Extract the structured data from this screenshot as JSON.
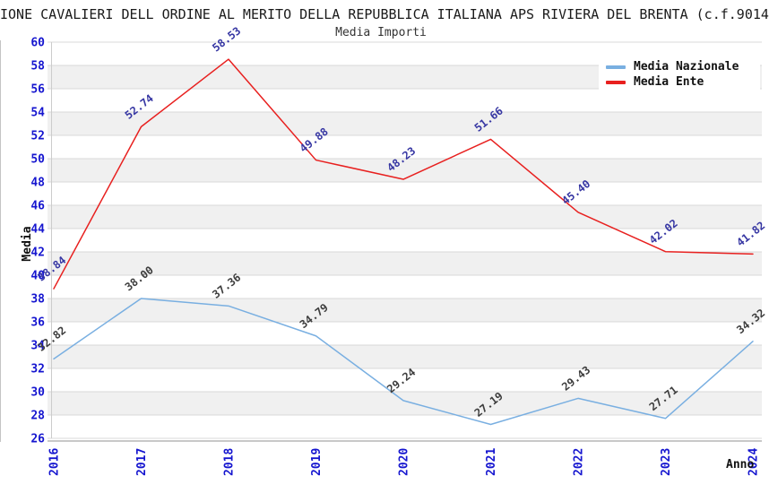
{
  "chart_data": {
    "type": "line",
    "title": "IONE CAVALIERI DELL ORDINE AL MERITO DELLA REPUBBLICA ITALIANA APS RIVIERA DEL BRENTA (c.f.9014",
    "subtitle": "Media Importi",
    "xlabel": "Anno",
    "ylabel": "Media",
    "x": [
      "2016",
      "2017",
      "2018",
      "2019",
      "2020",
      "2021",
      "2022",
      "2023",
      "2024"
    ],
    "ylim": [
      26,
      60
    ],
    "ytick_step": 2,
    "grid": "horizontal-striped-bands",
    "legend_position": "top-right",
    "series": [
      {
        "name": "Media Nazionale",
        "color": "#79afe1",
        "label_color": "#3d3d3d",
        "values": [
          32.82,
          38.0,
          37.36,
          34.79,
          29.24,
          27.19,
          29.43,
          27.71,
          34.32
        ],
        "labels": [
          "32.82",
          "38.00",
          "37.36",
          "34.79",
          "29.24",
          "27.19",
          "29.43",
          "27.71",
          "34.32"
        ]
      },
      {
        "name": "Media Ente",
        "color": "#e8201f",
        "label_color": "#3636a3",
        "values": [
          38.84,
          52.74,
          58.53,
          49.88,
          48.23,
          51.66,
          45.4,
          42.02,
          41.82
        ],
        "labels": [
          "38.84",
          "52.74",
          "58.53",
          "49.88",
          "48.23",
          "51.66",
          "45.40",
          "42.02",
          "41.82"
        ]
      }
    ],
    "colors": {
      "tick_label": "#1515cf",
      "band": "#f0f0f0",
      "grid": "#d8d8d8",
      "axis": "#a8a8a8",
      "border": "#c4c4c4",
      "title": "#1a1a1a"
    }
  }
}
